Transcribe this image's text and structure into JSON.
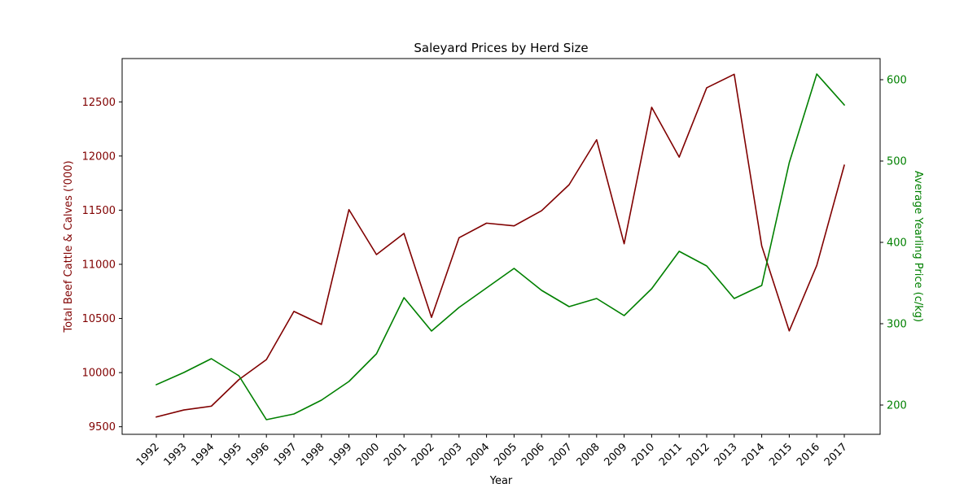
{
  "chart_data": {
    "type": "line",
    "title": "Saleyard Prices by Herd Size",
    "xlabel": "Year",
    "ylabel_left": "Total Beef Cattle & Calves ('000)",
    "ylabel_right": "Average Yearling Price (c/kg)",
    "x": [
      "1992",
      "1993",
      "1994",
      "1995",
      "1996",
      "1997",
      "1998",
      "1999",
      "2000",
      "2001",
      "2002",
      "2003",
      "2004",
      "2005",
      "2006",
      "2007",
      "2008",
      "2009",
      "2010",
      "2011",
      "2012",
      "2013",
      "2014",
      "2015",
      "2016",
      "2017"
    ],
    "y_left_ticks": [
      9500,
      10000,
      10500,
      11000,
      11500,
      12000,
      12500
    ],
    "y_right_ticks": [
      200,
      300,
      400,
      500,
      600
    ],
    "y_left_lim": [
      9430,
      12900
    ],
    "y_right_lim": [
      164,
      626
    ],
    "grid": false,
    "colors": {
      "left": "#800000",
      "right": "#008000"
    },
    "series": [
      {
        "axis": "left",
        "color": "#800000",
        "values": [
          9590,
          9655,
          9690,
          9935,
          10120,
          10565,
          10445,
          11505,
          11090,
          11285,
          10510,
          11245,
          11380,
          11355,
          11495,
          11735,
          12150,
          11190,
          12450,
          11990,
          12630,
          12755,
          11170,
          10385,
          10990,
          11915
        ]
      },
      {
        "axis": "right",
        "color": "#008000",
        "values": [
          225,
          240,
          257,
          236,
          182,
          189,
          206,
          229,
          263,
          332,
          291,
          320,
          344,
          368,
          341,
          321,
          331,
          310,
          343,
          389,
          371,
          331,
          347,
          498,
          607,
          569
        ]
      }
    ]
  }
}
